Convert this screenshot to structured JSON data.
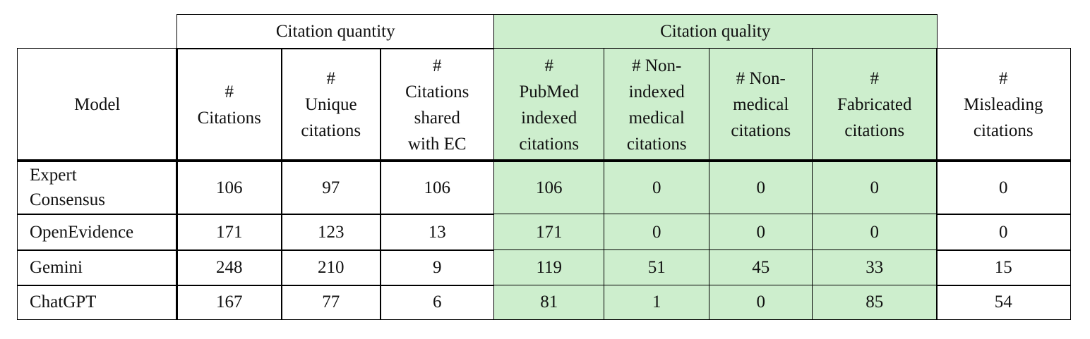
{
  "table": {
    "groups": [
      "Citation quantity",
      "Citation quality"
    ],
    "columns": [
      [
        "Model"
      ],
      [
        "#",
        "Citations"
      ],
      [
        "#",
        "Unique",
        "citations"
      ],
      [
        "#",
        "Citations",
        "shared",
        "with EC"
      ],
      [
        "#",
        "PubMed",
        "indexed",
        "citations"
      ],
      [
        "# Non-",
        "indexed",
        "medical",
        "citations"
      ],
      [
        "# Non-",
        "medical",
        "citations"
      ],
      [
        "#",
        "Fabricated",
        "citations"
      ],
      [
        "#",
        "Misleading",
        "citations"
      ]
    ],
    "rows": [
      [
        "Expert Consensus",
        106,
        97,
        106,
        106,
        0,
        0,
        0,
        0
      ],
      [
        "OpenEvidence",
        171,
        123,
        13,
        171,
        0,
        0,
        0,
        0
      ],
      [
        "Gemini",
        248,
        210,
        9,
        119,
        51,
        45,
        33,
        15
      ],
      [
        "ChatGPT",
        167,
        77,
        6,
        81,
        1,
        0,
        85,
        54
      ]
    ]
  }
}
